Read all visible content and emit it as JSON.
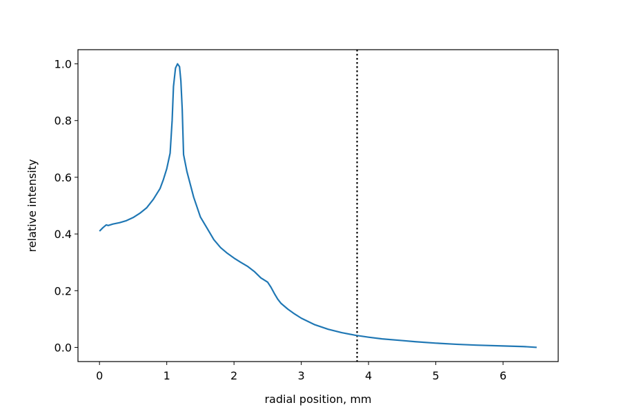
{
  "chart_data": {
    "type": "line",
    "xlabel": "radial position, mm",
    "ylabel": "relative intensity",
    "xlim": [
      -0.32,
      6.82
    ],
    "ylim": [
      -0.05,
      1.05
    ],
    "grid": false,
    "x_ticks": [
      0,
      1,
      2,
      3,
      4,
      5,
      6
    ],
    "y_ticks": [
      0.0,
      0.2,
      0.4,
      0.6,
      0.8,
      1.0
    ],
    "x_tick_labels": [
      "0",
      "1",
      "2",
      "3",
      "4",
      "5",
      "6"
    ],
    "y_tick_labels": [
      "0.0",
      "0.2",
      "0.4",
      "0.6",
      "0.8",
      "1.0"
    ],
    "vline": {
      "x": 3.83,
      "style": "dotted",
      "color": "#000000"
    },
    "series": [
      {
        "color": "#1f77b4",
        "points": [
          [
            0.0,
            0.41
          ],
          [
            0.05,
            0.422
          ],
          [
            0.1,
            0.432
          ],
          [
            0.13,
            0.43
          ],
          [
            0.2,
            0.435
          ],
          [
            0.3,
            0.44
          ],
          [
            0.4,
            0.447
          ],
          [
            0.5,
            0.458
          ],
          [
            0.6,
            0.473
          ],
          [
            0.7,
            0.492
          ],
          [
            0.8,
            0.522
          ],
          [
            0.9,
            0.56
          ],
          [
            0.95,
            0.592
          ],
          [
            1.0,
            0.63
          ],
          [
            1.05,
            0.685
          ],
          [
            1.08,
            0.8
          ],
          [
            1.1,
            0.92
          ],
          [
            1.13,
            0.985
          ],
          [
            1.16,
            1.0
          ],
          [
            1.19,
            0.99
          ],
          [
            1.21,
            0.94
          ],
          [
            1.23,
            0.84
          ],
          [
            1.25,
            0.68
          ],
          [
            1.3,
            0.62
          ],
          [
            1.4,
            0.53
          ],
          [
            1.5,
            0.46
          ],
          [
            1.6,
            0.42
          ],
          [
            1.7,
            0.38
          ],
          [
            1.8,
            0.352
          ],
          [
            1.9,
            0.332
          ],
          [
            2.0,
            0.315
          ],
          [
            2.1,
            0.3
          ],
          [
            2.2,
            0.286
          ],
          [
            2.3,
            0.268
          ],
          [
            2.4,
            0.245
          ],
          [
            2.5,
            0.23
          ],
          [
            2.55,
            0.212
          ],
          [
            2.6,
            0.19
          ],
          [
            2.65,
            0.17
          ],
          [
            2.7,
            0.155
          ],
          [
            2.8,
            0.135
          ],
          [
            2.9,
            0.118
          ],
          [
            3.0,
            0.103
          ],
          [
            3.2,
            0.08
          ],
          [
            3.4,
            0.064
          ],
          [
            3.6,
            0.052
          ],
          [
            3.8,
            0.043
          ],
          [
            4.0,
            0.036
          ],
          [
            4.2,
            0.03
          ],
          [
            4.5,
            0.024
          ],
          [
            4.7,
            0.02
          ],
          [
            5.0,
            0.015
          ],
          [
            5.3,
            0.011
          ],
          [
            5.6,
            0.008
          ],
          [
            6.0,
            0.005
          ],
          [
            6.3,
            0.003
          ],
          [
            6.5,
            0.0
          ]
        ]
      }
    ]
  }
}
